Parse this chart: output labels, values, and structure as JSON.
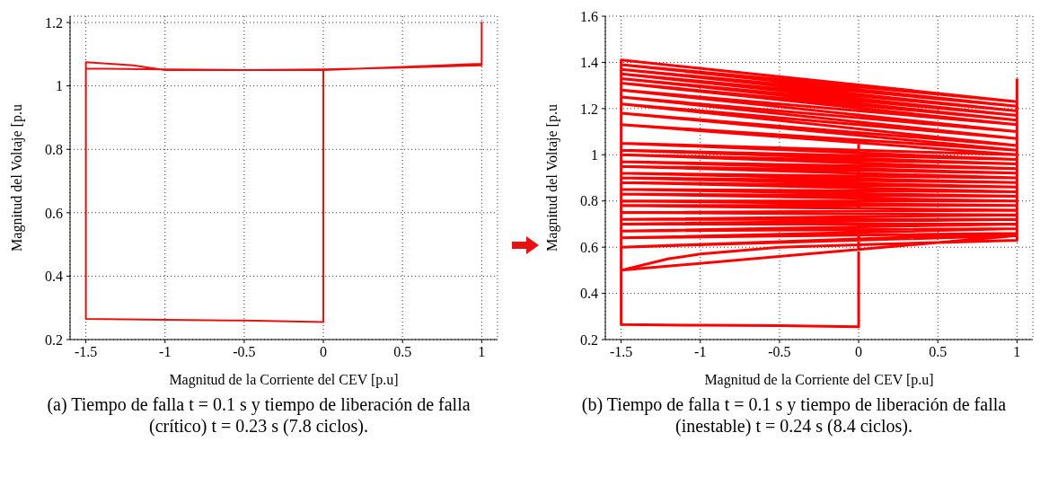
{
  "chart_data": [
    {
      "type": "line",
      "xlabel": "Magnitud de la Corriente del CEV [p.u]",
      "ylabel": "Magnitud del Voltaje [p.u",
      "xlim": [
        -1.6,
        1.1
      ],
      "ylim": [
        0.2,
        1.22
      ],
      "xticks": [
        -1.5,
        -1,
        -0.5,
        0,
        0.5,
        1
      ],
      "yticks": [
        0.2,
        0.4,
        0.6,
        0.8,
        1,
        1.2
      ],
      "grid": true,
      "marker": "none",
      "line_style": "solid",
      "series": [
        {
          "color": "#e81010",
          "x": [
            0,
            0,
            -0.5,
            -1,
            -1.5,
            -1.5,
            -1.2,
            -1,
            -0.5,
            0,
            0.5,
            1,
            1,
            1,
            0.5,
            0,
            -0.5,
            -1,
            -1.5
          ],
          "values": [
            1.05,
            0.255,
            0.26,
            0.262,
            0.265,
            1.075,
            1.065,
            1.05,
            1.05,
            1.05,
            1.06,
            1.07,
            1.2,
            1.065,
            1.058,
            1.052,
            1.05,
            1.052,
            1.055
          ]
        }
      ],
      "annotations": [
        "(a) Tiempo de falla t = 0.1 s y tiempo de liberación de falla (crítico) t = 0.23 s (7.8 ciclos)."
      ]
    },
    {
      "type": "line",
      "xlabel": "Magnitud de la Corriente del CEV [p.u]",
      "ylabel": "Magnitud del Voltaje [p.u",
      "xlim": [
        -1.6,
        1.1
      ],
      "ylim": [
        0.2,
        1.6
      ],
      "xticks": [
        -1.5,
        -1,
        -0.5,
        0,
        0.5,
        1
      ],
      "yticks": [
        0.2,
        0.4,
        0.6,
        0.8,
        1,
        1.2,
        1.4,
        1.6
      ],
      "grid": true,
      "marker": "none",
      "line_style": "solid",
      "series": [
        {
          "color": "#ff0000",
          "x": [
            0,
            0,
            -0.5,
            -1,
            -1.5,
            -1.5,
            1,
            -1.5,
            1,
            -1.5,
            1,
            -1.5,
            1,
            -1.5,
            1,
            -1.5,
            1,
            -1.5,
            1,
            -1.5,
            1,
            -1.5,
            1,
            -1.5,
            1,
            -1.5,
            1,
            -1.5,
            1,
            -1.5,
            1,
            -1.5,
            1,
            -1.5,
            1,
            -1.5,
            1,
            -1.5,
            1,
            -1.5,
            1,
            -1.5,
            1,
            -1.5,
            1,
            -1.5,
            1,
            -1.5,
            1,
            -1.5,
            1,
            -1.5,
            1,
            -1.5,
            1,
            -1.5,
            1,
            -1.5,
            1,
            -1.5,
            1,
            -1.5,
            1,
            -1.5,
            -1.2,
            -1,
            -0.5,
            0,
            0.5,
            1,
            1,
            1
          ],
          "values": [
            1.05,
            0.255,
            0.26,
            0.262,
            0.265,
            1.41,
            1.23,
            1.39,
            1.21,
            1.37,
            1.19,
            1.35,
            1.17,
            1.33,
            1.15,
            1.31,
            1.13,
            1.28,
            1.1,
            1.25,
            1.07,
            1.22,
            1.04,
            1.18,
            1.02,
            1.13,
            1.0,
            1.05,
            0.98,
            1.02,
            0.96,
            1.0,
            0.94,
            0.97,
            0.92,
            0.95,
            0.9,
            0.92,
            0.88,
            0.9,
            0.86,
            0.88,
            0.84,
            0.85,
            0.82,
            0.83,
            0.8,
            0.8,
            0.78,
            0.78,
            0.76,
            0.75,
            0.74,
            0.72,
            0.72,
            0.7,
            0.7,
            0.67,
            0.68,
            0.64,
            0.66,
            0.6,
            0.65,
            0.5,
            0.55,
            0.57,
            0.6,
            0.61,
            0.62,
            0.63,
            1.0,
            1.33
          ]
        }
      ],
      "annotations": [
        "(b) Tiempo de falla t = 0.1 s y tiempo de liberación de falla (inestable) t = 0.24 s (8.4 ciclos)."
      ]
    }
  ]
}
